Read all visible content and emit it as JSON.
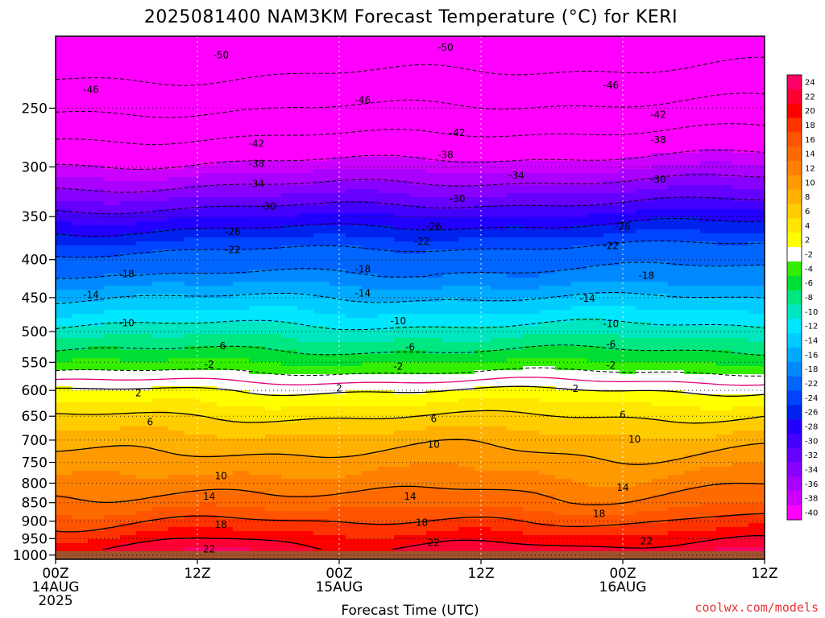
{
  "chart_data": {
    "type": "heatmap",
    "title": "2025081400 NAM3KM Forecast Temperature (°C) for KERI",
    "xlabel": "Forecast Time (UTC)",
    "ylabel": "",
    "credit": "coolwx.com/models",
    "x_ticks": [
      {
        "hour": 0,
        "line1": "00Z",
        "line2": "14AUG",
        "line3": "2025"
      },
      {
        "hour": 12,
        "line1": "12Z",
        "line2": "",
        "line3": ""
      },
      {
        "hour": 24,
        "line1": "00Z",
        "line2": "15AUG",
        "line3": ""
      },
      {
        "hour": 36,
        "line1": "12Z",
        "line2": "",
        "line3": ""
      },
      {
        "hour": 48,
        "line1": "00Z",
        "line2": "16AUG",
        "line3": ""
      },
      {
        "hour": 60,
        "line1": "12Z",
        "line2": "",
        "line3": ""
      }
    ],
    "xlim": [
      0,
      60
    ],
    "y_ticks": [
      250,
      300,
      350,
      400,
      450,
      500,
      550,
      600,
      650,
      700,
      750,
      800,
      850,
      900,
      950,
      1000
    ],
    "ylim": [
      200,
      1013
    ],
    "y_scale": "log-pressure",
    "surface_pressure": 985,
    "colorbar": {
      "levels": [
        24,
        22,
        20,
        18,
        16,
        14,
        12,
        10,
        8,
        6,
        4,
        2,
        -2,
        -4,
        -6,
        -8,
        -10,
        -12,
        -14,
        -16,
        -18,
        -22,
        -24,
        -26,
        -28,
        -30,
        -32,
        -34,
        -36,
        -38,
        -40
      ],
      "colors": [
        "#ff0066",
        "#ff0033",
        "#ff0000",
        "#ff3300",
        "#ff5500",
        "#ff6a00",
        "#ff8000",
        "#ff9900",
        "#ffb000",
        "#ffcc00",
        "#ffe600",
        "#ffff00",
        "#ffffff",
        "#33ee00",
        "#00dd33",
        "#00e680",
        "#00e6c0",
        "#00e6ff",
        "#00ccff",
        "#00aaff",
        "#0088ff",
        "#0066ff",
        "#0044ff",
        "#0022ee",
        "#2200ff",
        "#4400ff",
        "#6600ff",
        "#8800ff",
        "#aa00ff",
        "#cc00ff",
        "#ff00ff"
      ]
    },
    "profile_24h": [
      {
        "p": 200,
        "t": -54
      },
      {
        "p": 250,
        "t": -46
      },
      {
        "p": 300,
        "t": -37
      },
      {
        "p": 350,
        "t": -28
      },
      {
        "p": 400,
        "t": -20
      },
      {
        "p": 450,
        "t": -14
      },
      {
        "p": 500,
        "t": -9
      },
      {
        "p": 550,
        "t": -4
      },
      {
        "p": 600,
        "t": 2
      },
      {
        "p": 650,
        "t": 6
      },
      {
        "p": 700,
        "t": 9
      },
      {
        "p": 750,
        "t": 11
      },
      {
        "p": 800,
        "t": 13
      },
      {
        "p": 850,
        "t": 15
      },
      {
        "p": 900,
        "t": 18
      },
      {
        "p": 950,
        "t": 21
      },
      {
        "p": 985,
        "t": 23
      }
    ],
    "contour_labels": [
      {
        "value": "-50",
        "hour": 14,
        "p": 212
      },
      {
        "value": "-50",
        "hour": 33,
        "p": 207
      },
      {
        "value": "-46",
        "hour": 3,
        "p": 236
      },
      {
        "value": "-46",
        "hour": 26,
        "p": 244
      },
      {
        "value": "-46",
        "hour": 47,
        "p": 233
      },
      {
        "value": "-42",
        "hour": 17,
        "p": 279
      },
      {
        "value": "-42",
        "hour": 34,
        "p": 270
      },
      {
        "value": "-42",
        "hour": 51,
        "p": 255
      },
      {
        "value": "-38",
        "hour": 17,
        "p": 297
      },
      {
        "value": "-38",
        "hour": 33,
        "p": 289
      },
      {
        "value": "-38",
        "hour": 51,
        "p": 276
      },
      {
        "value": "-34",
        "hour": 17,
        "p": 316
      },
      {
        "value": "-34",
        "hour": 39,
        "p": 308
      },
      {
        "value": "-30",
        "hour": 18,
        "p": 339
      },
      {
        "value": "-30",
        "hour": 34,
        "p": 331
      },
      {
        "value": "-30",
        "hour": 51,
        "p": 312
      },
      {
        "value": "-26",
        "hour": 15,
        "p": 367
      },
      {
        "value": "-26",
        "hour": 32,
        "p": 361
      },
      {
        "value": "-26",
        "hour": 48,
        "p": 361
      },
      {
        "value": "-22",
        "hour": 15,
        "p": 388
      },
      {
        "value": "-22",
        "hour": 31,
        "p": 378
      },
      {
        "value": "-22",
        "hour": 47,
        "p": 383
      },
      {
        "value": "-18",
        "hour": 6,
        "p": 418
      },
      {
        "value": "-18",
        "hour": 26,
        "p": 412
      },
      {
        "value": "-18",
        "hour": 50,
        "p": 420
      },
      {
        "value": "-14",
        "hour": 3,
        "p": 446
      },
      {
        "value": "-14",
        "hour": 26,
        "p": 444
      },
      {
        "value": "-14",
        "hour": 45,
        "p": 451
      },
      {
        "value": "-10",
        "hour": 6,
        "p": 487
      },
      {
        "value": "-10",
        "hour": 29,
        "p": 484
      },
      {
        "value": "-10",
        "hour": 47,
        "p": 488
      },
      {
        "value": "-6",
        "hour": 14,
        "p": 523
      },
      {
        "value": "-6",
        "hour": 30,
        "p": 525
      },
      {
        "value": "-6",
        "hour": 47,
        "p": 520
      },
      {
        "value": "-2",
        "hour": 13,
        "p": 554
      },
      {
        "value": "-2",
        "hour": 29,
        "p": 557
      },
      {
        "value": "-2",
        "hour": 47,
        "p": 555
      },
      {
        "value": "2",
        "hour": 7,
        "p": 605
      },
      {
        "value": "2",
        "hour": 24,
        "p": 596
      },
      {
        "value": "2",
        "hour": 44,
        "p": 597
      },
      {
        "value": "6",
        "hour": 8,
        "p": 662
      },
      {
        "value": "6",
        "hour": 32,
        "p": 655
      },
      {
        "value": "6",
        "hour": 48,
        "p": 647
      },
      {
        "value": "10",
        "hour": 14,
        "p": 782
      },
      {
        "value": "10",
        "hour": 32,
        "p": 710
      },
      {
        "value": "10",
        "hour": 49,
        "p": 698
      },
      {
        "value": "14",
        "hour": 13,
        "p": 834
      },
      {
        "value": "14",
        "hour": 30,
        "p": 834
      },
      {
        "value": "14",
        "hour": 48,
        "p": 811
      },
      {
        "value": "18",
        "hour": 14,
        "p": 910
      },
      {
        "value": "18",
        "hour": 31,
        "p": 904
      },
      {
        "value": "18",
        "hour": 46,
        "p": 880
      },
      {
        "value": "22",
        "hour": 13,
        "p": 982
      },
      {
        "value": "22",
        "hour": 32,
        "p": 963
      },
      {
        "value": "22",
        "hour": 50,
        "p": 958
      }
    ]
  }
}
